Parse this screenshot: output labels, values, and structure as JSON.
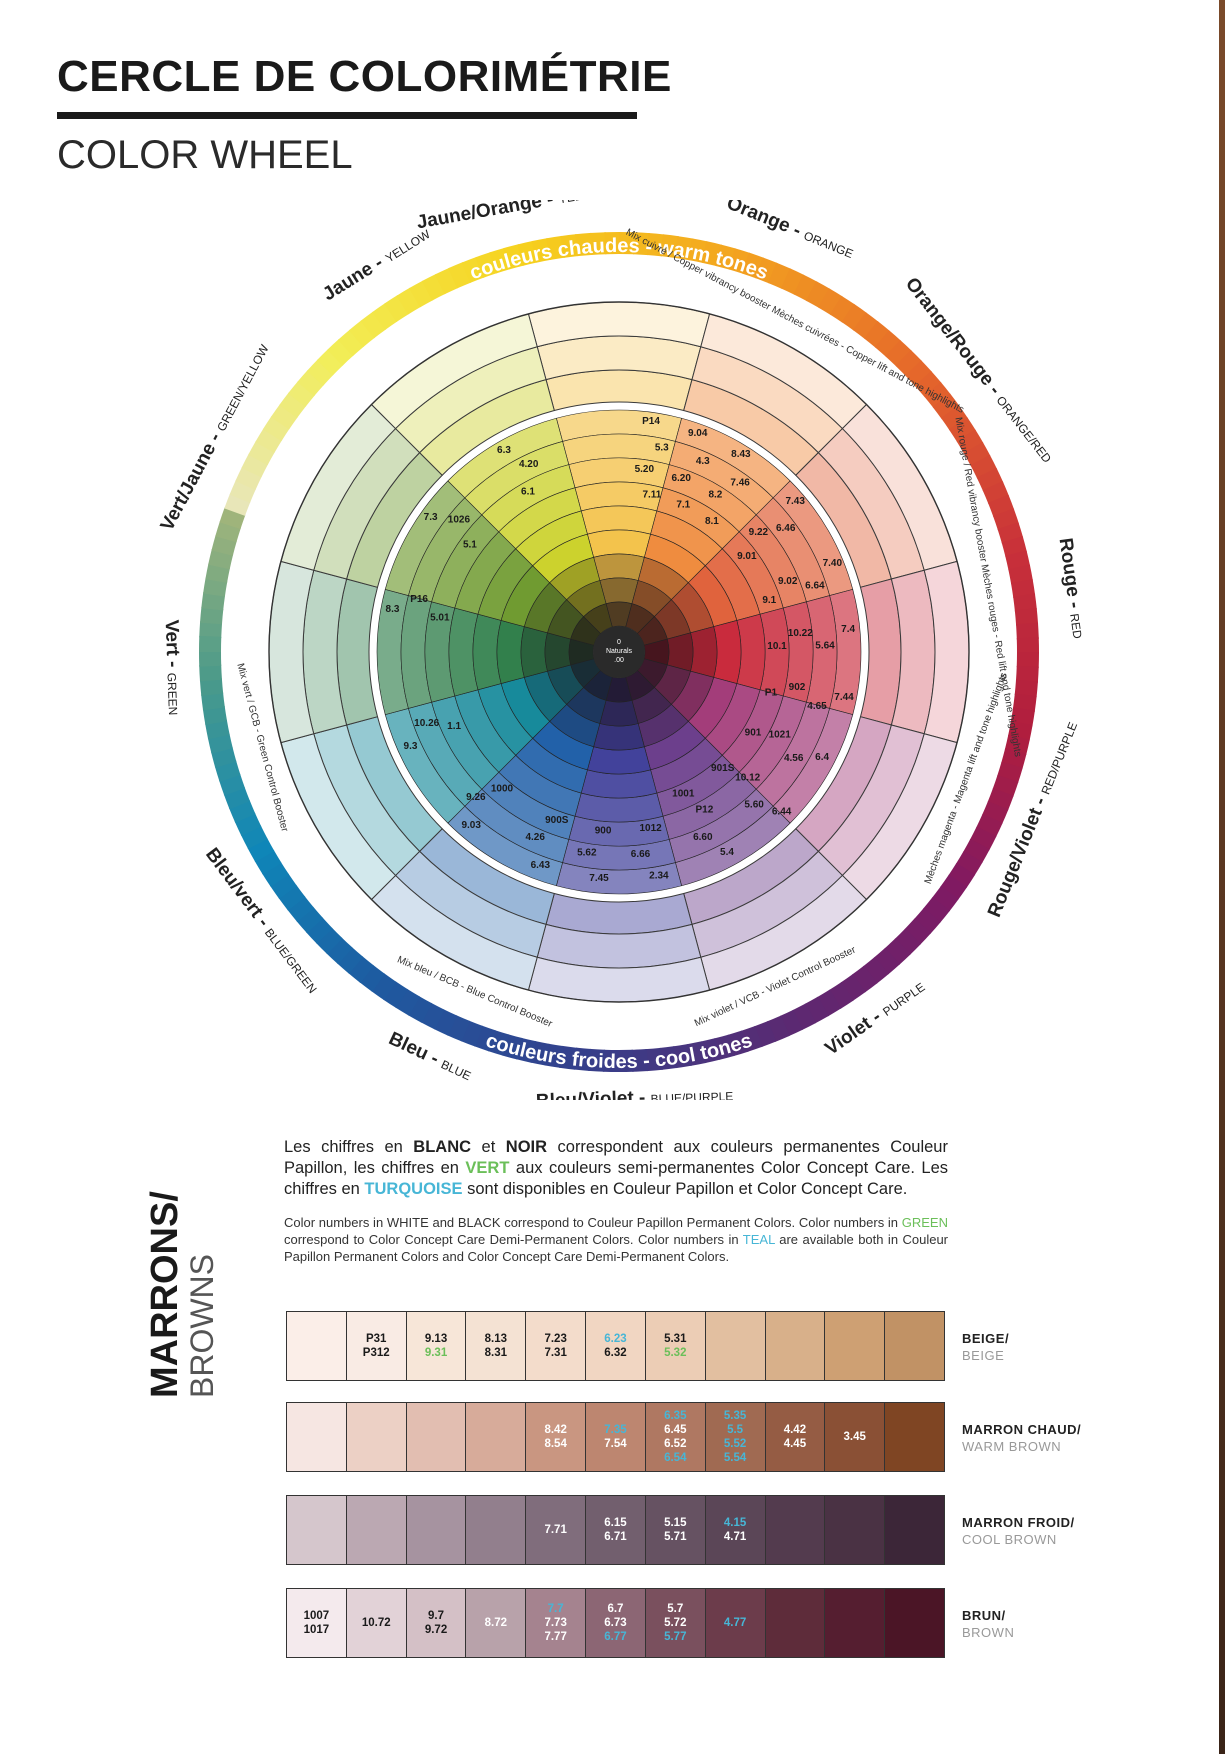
{
  "title": "CERCLE DE COLORIMÉTRIE",
  "subtitle": "COLOR WHEEL",
  "wheel": {
    "center_lines": [
      "0",
      "Naturals",
      ".00"
    ],
    "warm_band": "couleurs chaudes - warm tones",
    "cool_band": "couleurs froides - cool tones",
    "names": [
      {
        "fr": "Jaune/Orange -",
        "en": "YELLOW/ORANGE"
      },
      {
        "fr": "Orange -",
        "en": "ORANGE"
      },
      {
        "fr": "Orange/Rouge -",
        "en": "ORANGE/RED"
      },
      {
        "fr": "Rouge -",
        "en": "RED"
      },
      {
        "fr": "Rouge/Violet -",
        "en": "RED/PURPLE"
      },
      {
        "fr": "Violet -",
        "en": "PURPLE"
      },
      {
        "fr": "Bleu/Violet -",
        "en": "BLUE/PURPLE"
      },
      {
        "fr": "Bleu -",
        "en": "BLUE"
      },
      {
        "fr": "Bleu/vert -",
        "en": "BLUE/GREEN"
      },
      {
        "fr": "Vert -",
        "en": "GREEN"
      },
      {
        "fr": "Vert/Jaune -",
        "en": "GREEN/YELLOW"
      },
      {
        "fr": "Jaune -",
        "en": "YELLOW"
      }
    ],
    "boosters": [
      {
        "main": "Mix cuivré / Copper vibrancy booster",
        "sub": "Mèches cuivrées - Copper lift and tone highlights"
      },
      {
        "main": "Mix rouge / Red vibrancy booster",
        "sub": "Mèches rouges - Red lift and tone highlights"
      },
      {
        "main": "Mèches magenta - Magenta lift and tone highlights",
        "sub": ""
      },
      {
        "main": "Mix violet / VCB - Violet Control Booster",
        "sub": ""
      },
      {
        "main": "Mix bleu / BCB - Blue Control Booster",
        "sub": ""
      },
      {
        "main": "Mix vert / GCB - Green Control Booster",
        "sub": ""
      }
    ],
    "numbers": [
      "P14",
      "9.04",
      "8.43",
      "7.43",
      "7.40",
      "7.4",
      "7.44",
      "6.4",
      "6.44",
      "5.4",
      "2.34",
      "7.45",
      "6.43",
      "9.03",
      "9.3",
      "8.3",
      "7.3",
      "6.3",
      "5.3",
      "4.3",
      "7.46",
      "6.46",
      "6.64",
      "5.64",
      "4.65",
      "4.56",
      "5.60",
      "6.60",
      "6.66",
      "5.62",
      "4.26",
      "9.26",
      "10.26",
      "P16",
      "1026",
      "4.20",
      "5.20",
      "6.20",
      "8.2",
      "9.22",
      "9.02",
      "10.22",
      "902",
      "1021",
      "10.12",
      "P12",
      "1012",
      "900",
      "900S",
      "1000",
      "1.1",
      "5.01",
      "5.1",
      "6.1",
      "7.11",
      "7.1",
      "8.1",
      "9.01",
      "9.1",
      "10.1",
      "P1",
      "901",
      "901S",
      "1001"
    ]
  },
  "legend": {
    "fr": {
      "p1": "Les chiffres en",
      "blanc": "BLANC",
      "p2": "et",
      "noir": "NOIR",
      "p3": "correspondent aux couleurs permanentes Couleur Papillon, les chiffres en",
      "vert": "VERT",
      "p4": "aux couleurs semi-permanentes Color Concept Care. Les chiffres en",
      "turquoise": "TURQUOISE",
      "p5": "sont disponibles en Couleur Papillon et Color Concept Care."
    },
    "en": {
      "p1": "Color numbers in WHITE and BLACK correspond to Couleur Papillon Permanent Colors. Color numbers in",
      "green": "GREEN",
      "p2": "correspond to Color Concept Care Demi-Permanent Colors. Color numbers in",
      "teal": "TEAL",
      "p3": "are available both in Couleur Papillon Permanent Colors and Color Concept Care Demi-Permanent Colors."
    }
  },
  "browns": {
    "title_fr": "MARRONS/",
    "title_en": "BROWNS",
    "rows": [
      {
        "fr": "BEIGE/",
        "en": "BEIGE",
        "cells": [
          {
            "color": "#fbeee8",
            "lines": []
          },
          {
            "color": "#f9ebe4",
            "lines": [
              {
                "t": "P31",
                "c": "k"
              },
              {
                "t": "P312",
                "c": "k"
              }
            ]
          },
          {
            "color": "#f7e6d8",
            "lines": [
              {
                "t": "9.13",
                "c": "k"
              },
              {
                "t": "9.31",
                "c": "g"
              }
            ]
          },
          {
            "color": "#f4e2d3",
            "lines": [
              {
                "t": "8.13",
                "c": "k"
              },
              {
                "t": "8.31",
                "c": "k"
              }
            ]
          },
          {
            "color": "#f3dccb",
            "lines": [
              {
                "t": "7.23",
                "c": "k"
              },
              {
                "t": "7.31",
                "c": "k"
              }
            ]
          },
          {
            "color": "#f1d6c2",
            "lines": [
              {
                "t": "6.23",
                "c": "t"
              },
              {
                "t": "6.32",
                "c": "k"
              }
            ]
          },
          {
            "color": "#eccdb5",
            "lines": [
              {
                "t": "5.31",
                "c": "k"
              },
              {
                "t": "5.32",
                "c": "g"
              }
            ]
          },
          {
            "color": "#e2bfa0",
            "lines": []
          },
          {
            "color": "#d8b08a",
            "lines": []
          },
          {
            "color": "#cea073",
            "lines": []
          },
          {
            "color": "#c19265",
            "lines": []
          }
        ]
      },
      {
        "fr": "MARRON CHAUD/",
        "en": "WARM BROWN",
        "cells": [
          {
            "color": "#f6e6e2",
            "lines": []
          },
          {
            "color": "#ecd0c5",
            "lines": []
          },
          {
            "color": "#e2beb1",
            "lines": []
          },
          {
            "color": "#d7ab9a",
            "lines": []
          },
          {
            "color": "#c99681",
            "lines": [
              {
                "t": "8.42",
                "c": "w"
              },
              {
                "t": "8.54",
                "c": "w"
              }
            ]
          },
          {
            "color": "#bd8670",
            "lines": [
              {
                "t": "7.35",
                "c": "t"
              },
              {
                "t": "7.54",
                "c": "w"
              }
            ]
          },
          {
            "color": "#af7862",
            "lines": [
              {
                "t": "6.35",
                "c": "t"
              },
              {
                "t": "6.45",
                "c": "w"
              },
              {
                "t": "6.52",
                "c": "w"
              },
              {
                "t": "6.54",
                "c": "t"
              }
            ]
          },
          {
            "color": "#a06a52",
            "lines": [
              {
                "t": "5.35",
                "c": "t"
              },
              {
                "t": "5.5",
                "c": "t"
              },
              {
                "t": "5.52",
                "c": "t"
              },
              {
                "t": "5.54",
                "c": "t"
              }
            ]
          },
          {
            "color": "#955c44",
            "lines": [
              {
                "t": "4.42",
                "c": "w"
              },
              {
                "t": "4.45",
                "c": "w"
              }
            ]
          },
          {
            "color": "#8a5035",
            "lines": [
              {
                "t": "3.45",
                "c": "w"
              }
            ]
          },
          {
            "color": "#7f4523",
            "lines": []
          }
        ]
      },
      {
        "fr": "MARRON FROID/",
        "en": "COOL BROWN",
        "cells": [
          {
            "color": "#d5c6cc",
            "lines": []
          },
          {
            "color": "#bba8b2",
            "lines": []
          },
          {
            "color": "#a693a0",
            "lines": []
          },
          {
            "color": "#927f8d",
            "lines": []
          },
          {
            "color": "#806d7c",
            "lines": [
              {
                "t": "7.71",
                "c": "w"
              }
            ]
          },
          {
            "color": "#725f6e",
            "lines": [
              {
                "t": "6.15",
                "c": "w"
              },
              {
                "t": "6.71",
                "c": "w"
              }
            ]
          },
          {
            "color": "#665262",
            "lines": [
              {
                "t": "5.15",
                "c": "w"
              },
              {
                "t": "5.71",
                "c": "w"
              }
            ]
          },
          {
            "color": "#5b4657",
            "lines": [
              {
                "t": "4.15",
                "c": "t"
              },
              {
                "t": "4.71",
                "c": "w"
              }
            ]
          },
          {
            "color": "#533b4e",
            "lines": []
          },
          {
            "color": "#4a3244",
            "lines": []
          },
          {
            "color": "#3c2638",
            "lines": []
          }
        ]
      },
      {
        "fr": "BRUN/",
        "en": "BROWN",
        "cells": [
          {
            "color": "#f4eaed",
            "lines": [
              {
                "t": "1007",
                "c": "k"
              },
              {
                "t": "1017",
                "c": "k"
              }
            ]
          },
          {
            "color": "#e2d2d7",
            "lines": [
              {
                "t": "10.72",
                "c": "k"
              }
            ]
          },
          {
            "color": "#d4c0c6",
            "lines": [
              {
                "t": "9.7",
                "c": "k"
              },
              {
                "t": "9.72",
                "c": "k"
              }
            ]
          },
          {
            "color": "#b8a2aa",
            "lines": [
              {
                "t": "8.72",
                "c": "w"
              }
            ]
          },
          {
            "color": "#a5838f",
            "lines": [
              {
                "t": "7.7",
                "c": "t"
              },
              {
                "t": "7.73",
                "c": "w"
              },
              {
                "t": "7.77",
                "c": "w"
              }
            ]
          },
          {
            "color": "#8c6674",
            "lines": [
              {
                "t": "6.7",
                "c": "w"
              },
              {
                "t": "6.73",
                "c": "w"
              },
              {
                "t": "6.77",
                "c": "t"
              }
            ]
          },
          {
            "color": "#7a505e",
            "lines": [
              {
                "t": "5.7",
                "c": "w"
              },
              {
                "t": "5.72",
                "c": "w"
              },
              {
                "t": "5.77",
                "c": "t"
              }
            ]
          },
          {
            "color": "#6c3c4b",
            "lines": [
              {
                "t": "4.77",
                "c": "t"
              }
            ]
          },
          {
            "color": "#5e2c3a",
            "lines": []
          },
          {
            "color": "#551e30",
            "lines": []
          },
          {
            "color": "#4b1526",
            "lines": []
          }
        ]
      }
    ]
  },
  "colors": {
    "green_text": "#6bbf59",
    "teal_text": "#47b6d6"
  }
}
